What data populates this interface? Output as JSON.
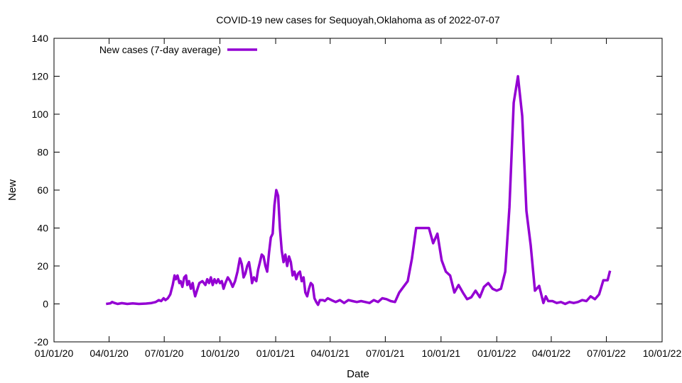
{
  "chart_data": {
    "type": "line",
    "title": "COVID-19 new cases for Sequoyah,Oklahoma as of 2022-07-07",
    "xlabel": "Date",
    "ylabel": "New",
    "xlim": [
      "2020-01-01",
      "2022-10-01"
    ],
    "ylim": [
      -20,
      140
    ],
    "x_ticks": [
      "2020-01-01",
      "2020-04-01",
      "2020-07-01",
      "2020-10-01",
      "2021-01-01",
      "2021-04-01",
      "2021-07-01",
      "2021-10-01",
      "2022-01-01",
      "2022-04-01",
      "2022-07-01",
      "2022-10-01"
    ],
    "x_tick_labels": [
      "01/01/20",
      "04/01/20",
      "07/01/20",
      "10/01/20",
      "01/01/21",
      "04/01/21",
      "07/01/21",
      "10/01/21",
      "01/01/22",
      "04/01/22",
      "07/01/22",
      "10/01/22"
    ],
    "y_ticks": [
      -20,
      0,
      20,
      40,
      60,
      80,
      100,
      120,
      140
    ],
    "grid": false,
    "legend_position": "top-left",
    "series": [
      {
        "name": "New cases (7-day average)",
        "color": "#9400d3",
        "points": [
          [
            "2020-03-27",
            0
          ],
          [
            "2020-04-03",
            0.3
          ],
          [
            "2020-04-06",
            1
          ],
          [
            "2020-04-10",
            0.5
          ],
          [
            "2020-04-15",
            0
          ],
          [
            "2020-04-22",
            0.4
          ],
          [
            "2020-05-01",
            0
          ],
          [
            "2020-05-10",
            0.3
          ],
          [
            "2020-05-20",
            0
          ],
          [
            "2020-06-01",
            0.2
          ],
          [
            "2020-06-10",
            0.5
          ],
          [
            "2020-06-17",
            1
          ],
          [
            "2020-06-22",
            2
          ],
          [
            "2020-06-26",
            1.5
          ],
          [
            "2020-06-30",
            3
          ],
          [
            "2020-07-03",
            2
          ],
          [
            "2020-07-07",
            3
          ],
          [
            "2020-07-11",
            5
          ],
          [
            "2020-07-15",
            10
          ],
          [
            "2020-07-18",
            15
          ],
          [
            "2020-07-20",
            13
          ],
          [
            "2020-07-23",
            15
          ],
          [
            "2020-07-26",
            11
          ],
          [
            "2020-07-28",
            12
          ],
          [
            "2020-07-31",
            9
          ],
          [
            "2020-08-03",
            14
          ],
          [
            "2020-08-06",
            15
          ],
          [
            "2020-08-08",
            10
          ],
          [
            "2020-08-11",
            12
          ],
          [
            "2020-08-14",
            8
          ],
          [
            "2020-08-17",
            11
          ],
          [
            "2020-08-19",
            7
          ],
          [
            "2020-08-21",
            4
          ],
          [
            "2020-08-24",
            7
          ],
          [
            "2020-08-28",
            11
          ],
          [
            "2020-09-02",
            12
          ],
          [
            "2020-09-07",
            10
          ],
          [
            "2020-09-10",
            13
          ],
          [
            "2020-09-13",
            11
          ],
          [
            "2020-09-16",
            14
          ],
          [
            "2020-09-19",
            10
          ],
          [
            "2020-09-22",
            13
          ],
          [
            "2020-09-25",
            11
          ],
          [
            "2020-09-28",
            13
          ],
          [
            "2020-10-01",
            11
          ],
          [
            "2020-10-04",
            12
          ],
          [
            "2020-10-07",
            8
          ],
          [
            "2020-10-10",
            11
          ],
          [
            "2020-10-14",
            14
          ],
          [
            "2020-10-18",
            12
          ],
          [
            "2020-10-22",
            9
          ],
          [
            "2020-10-26",
            12
          ],
          [
            "2020-10-30",
            17
          ],
          [
            "2020-11-03",
            24
          ],
          [
            "2020-11-06",
            21
          ],
          [
            "2020-11-09",
            14
          ],
          [
            "2020-11-12",
            16
          ],
          [
            "2020-11-15",
            20
          ],
          [
            "2020-11-18",
            22
          ],
          [
            "2020-11-21",
            16
          ],
          [
            "2020-11-23",
            11
          ],
          [
            "2020-11-26",
            14
          ],
          [
            "2020-11-30",
            12
          ],
          [
            "2020-12-03",
            18
          ],
          [
            "2020-12-06",
            22
          ],
          [
            "2020-12-09",
            26
          ],
          [
            "2020-12-12",
            25
          ],
          [
            "2020-12-15",
            20
          ],
          [
            "2020-12-18",
            17
          ],
          [
            "2020-12-21",
            27
          ],
          [
            "2020-12-24",
            35
          ],
          [
            "2020-12-27",
            37
          ],
          [
            "2020-12-30",
            52
          ],
          [
            "2021-01-02",
            60
          ],
          [
            "2021-01-05",
            57
          ],
          [
            "2021-01-08",
            40
          ],
          [
            "2021-01-11",
            28
          ],
          [
            "2021-01-14",
            22
          ],
          [
            "2021-01-17",
            26
          ],
          [
            "2021-01-20",
            20
          ],
          [
            "2021-01-23",
            25
          ],
          [
            "2021-01-26",
            22
          ],
          [
            "2021-01-29",
            15
          ],
          [
            "2021-02-01",
            17
          ],
          [
            "2021-02-04",
            13
          ],
          [
            "2021-02-07",
            16
          ],
          [
            "2021-02-10",
            17
          ],
          [
            "2021-02-13",
            12
          ],
          [
            "2021-02-16",
            14
          ],
          [
            "2021-02-19",
            6
          ],
          [
            "2021-02-22",
            4
          ],
          [
            "2021-02-25",
            8
          ],
          [
            "2021-02-28",
            11
          ],
          [
            "2021-03-03",
            10
          ],
          [
            "2021-03-06",
            3
          ],
          [
            "2021-03-09",
            1
          ],
          [
            "2021-03-12",
            -0.5
          ],
          [
            "2021-03-15",
            2
          ],
          [
            "2021-03-20",
            2
          ],
          [
            "2021-03-23",
            1.5
          ],
          [
            "2021-03-28",
            3
          ],
          [
            "2021-04-03",
            2
          ],
          [
            "2021-04-10",
            1
          ],
          [
            "2021-04-17",
            2
          ],
          [
            "2021-04-24",
            0.5
          ],
          [
            "2021-05-01",
            2
          ],
          [
            "2021-05-08",
            1.5
          ],
          [
            "2021-05-15",
            1
          ],
          [
            "2021-05-22",
            1.5
          ],
          [
            "2021-05-29",
            1
          ],
          [
            "2021-06-05",
            0.5
          ],
          [
            "2021-06-12",
            2
          ],
          [
            "2021-06-19",
            1
          ],
          [
            "2021-06-26",
            3
          ],
          [
            "2021-07-03",
            2.5
          ],
          [
            "2021-07-10",
            1.5
          ],
          [
            "2021-07-17",
            1
          ],
          [
            "2021-07-24",
            6
          ],
          [
            "2021-07-31",
            9
          ],
          [
            "2021-08-07",
            12
          ],
          [
            "2021-08-14",
            24
          ],
          [
            "2021-08-21",
            40
          ],
          [
            "2021-08-28",
            40
          ],
          [
            "2021-09-04",
            40
          ],
          [
            "2021-09-11",
            40
          ],
          [
            "2021-09-18",
            32
          ],
          [
            "2021-09-25",
            37
          ],
          [
            "2021-10-02",
            23
          ],
          [
            "2021-10-09",
            17
          ],
          [
            "2021-10-16",
            15
          ],
          [
            "2021-10-23",
            6
          ],
          [
            "2021-10-30",
            10
          ],
          [
            "2021-11-06",
            6
          ],
          [
            "2021-11-13",
            2.5
          ],
          [
            "2021-11-20",
            3.5
          ],
          [
            "2021-11-27",
            7
          ],
          [
            "2021-12-04",
            3.5
          ],
          [
            "2021-12-11",
            9
          ],
          [
            "2021-12-18",
            11
          ],
          [
            "2021-12-25",
            8
          ],
          [
            "2022-01-01",
            7
          ],
          [
            "2022-01-08",
            8
          ],
          [
            "2022-01-15",
            17
          ],
          [
            "2022-01-22",
            51
          ],
          [
            "2022-01-29",
            106
          ],
          [
            "2022-02-05",
            120
          ],
          [
            "2022-02-12",
            99
          ],
          [
            "2022-02-19",
            49
          ],
          [
            "2022-02-26",
            31
          ],
          [
            "2022-03-05",
            7
          ],
          [
            "2022-03-12",
            9.5
          ],
          [
            "2022-03-19",
            0.5
          ],
          [
            "2022-03-23",
            4
          ],
          [
            "2022-03-27",
            1.5
          ],
          [
            "2022-04-03",
            1.5
          ],
          [
            "2022-04-10",
            0.5
          ],
          [
            "2022-04-17",
            1
          ],
          [
            "2022-04-24",
            0
          ],
          [
            "2022-05-01",
            1
          ],
          [
            "2022-05-08",
            0.5
          ],
          [
            "2022-05-15",
            1
          ],
          [
            "2022-05-22",
            2
          ],
          [
            "2022-05-29",
            1.5
          ],
          [
            "2022-06-05",
            4
          ],
          [
            "2022-06-12",
            2.5
          ],
          [
            "2022-06-19",
            5
          ],
          [
            "2022-06-26",
            12.5
          ],
          [
            "2022-07-03",
            12.5
          ],
          [
            "2022-07-07",
            17.5
          ]
        ]
      }
    ]
  }
}
